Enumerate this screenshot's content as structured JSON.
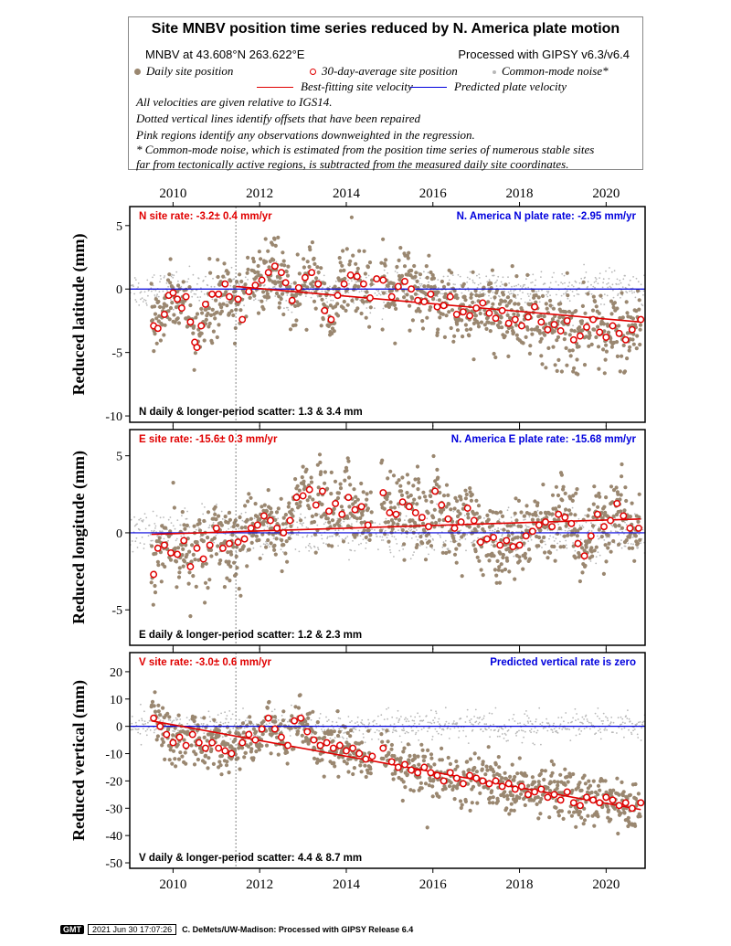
{
  "legend": {
    "title": "Site MNBV position time series reduced by N. America plate motion",
    "site_coords": "MNBV at 43.608°N 263.622°E",
    "processed": "Processed with GIPSY v6.3/v6.4",
    "daily_label": "Daily site position",
    "avg_label": "30-day-average site position",
    "cm_label": "Common-mode noise*",
    "best_fit_label": "Best-fitting site velocity",
    "predicted_label": "Predicted plate velocity",
    "notes": [
      "All velocities are given relative to IGS14.",
      "Dotted vertical lines identify offsets that have been repaired",
      "Pink regions identify any observations downweighted in the regression.",
      "* Common-mode noise, which is estimated from the position time series of numerous stable sites",
      "far from tectonically active regions, is subtracted from the measured daily site coordinates."
    ]
  },
  "colors": {
    "daily": "#9a8770",
    "average_stroke": "#e00000",
    "common_mode": "#b8b8b8",
    "best_fit": "#e00000",
    "predicted": "#0000dd",
    "rate_text": "#e00000",
    "plate_text": "#0000dd"
  },
  "chart_data": [
    {
      "type": "scatter",
      "id": "north",
      "ylabel": "Reduced latitude (mm)",
      "xlim": [
        2009.0,
        2020.9
      ],
      "ylim": [
        -10.5,
        6.5
      ],
      "yticks": [
        5,
        0,
        -5,
        -10
      ],
      "xticks": [
        2010,
        2012,
        2014,
        2016,
        2018,
        2020
      ],
      "rate_text": "N site rate:  -3.2± 0.4 mm/yr",
      "plate_text": "N. America N plate rate: -2.95 mm/yr",
      "scatter_text": "N daily & longer-period scatter:   1.3 &   3.4 mm",
      "offset_line_year": 2011.45,
      "predicted_value": 0,
      "best_fit": {
        "x": [
          2011.45,
          2020.8
        ],
        "y": [
          0.2,
          -2.6
        ]
      },
      "averages": {
        "x": [
          2009.55,
          2009.65,
          2009.8,
          2009.9,
          2010.0,
          2010.1,
          2010.2,
          2010.3,
          2010.4,
          2010.5,
          2010.55,
          2010.65,
          2010.75,
          2010.9,
          2011.05,
          2011.2,
          2011.3,
          2011.5,
          2011.6,
          2011.75,
          2011.9,
          2012.05,
          2012.2,
          2012.35,
          2012.5,
          2012.6,
          2012.75,
          2012.9,
          2013.05,
          2013.2,
          2013.35,
          2013.5,
          2013.65,
          2013.8,
          2013.95,
          2014.1,
          2014.25,
          2014.4,
          2014.55,
          2014.7,
          2014.85,
          2015.05,
          2015.2,
          2015.35,
          2015.5,
          2015.65,
          2015.8,
          2015.95,
          2016.1,
          2016.25,
          2016.4,
          2016.55,
          2016.7,
          2016.85,
          2017.0,
          2017.15,
          2017.3,
          2017.45,
          2017.6,
          2017.75,
          2017.9,
          2018.05,
          2018.2,
          2018.35,
          2018.5,
          2018.65,
          2018.8,
          2018.95,
          2019.1,
          2019.25,
          2019.4,
          2019.55,
          2019.7,
          2019.85,
          2020.0,
          2020.15,
          2020.3,
          2020.45,
          2020.6,
          2020.8
        ],
        "y": [
          -2.9,
          -3.1,
          -2.0,
          -0.5,
          -0.3,
          -0.8,
          -1.5,
          -0.6,
          -2.6,
          -4.2,
          -4.6,
          -2.9,
          -1.2,
          -0.4,
          -0.4,
          0.4,
          -0.6,
          -0.8,
          -2.4,
          -0.2,
          0.3,
          0.7,
          1.3,
          1.8,
          1.3,
          0.5,
          -0.9,
          0.1,
          0.9,
          1.3,
          0.4,
          -1.7,
          -2.4,
          -0.5,
          0.4,
          1.1,
          1.0,
          0.4,
          -0.7,
          0.8,
          0.7,
          -0.6,
          0.2,
          0.6,
          0.0,
          -0.9,
          -1.0,
          -0.4,
          -1.4,
          -1.3,
          -0.6,
          -2.0,
          -1.8,
          -2.1,
          -1.5,
          -1.1,
          -1.9,
          -2.3,
          -1.7,
          -2.7,
          -2.4,
          -2.9,
          -2.2,
          -1.4,
          -2.6,
          -3.2,
          -2.8,
          -3.3,
          -2.5,
          -4.0,
          -3.7,
          -3.0,
          -2.4,
          -3.4,
          -3.8,
          -2.9,
          -3.5,
          -4.0,
          -3.2,
          -2.4
        ]
      }
    },
    {
      "type": "scatter",
      "id": "east",
      "ylabel": "Reduced longitude (mm)",
      "xlim": [
        2009.0,
        2020.9
      ],
      "ylim": [
        -7.3,
        6.7
      ],
      "yticks": [
        5,
        0,
        -5
      ],
      "xticks": [
        2010,
        2012,
        2014,
        2016,
        2018,
        2020
      ],
      "rate_text": "E site rate:  -15.6± 0.3 mm/yr",
      "plate_text": "N. America E plate rate: -15.68 mm/yr",
      "scatter_text": "E daily & longer-period scatter:   1.2 &   2.3 mm",
      "offset_line_year": 2011.45,
      "predicted_value": 0,
      "best_fit": {
        "x": [
          2009.5,
          2020.8
        ],
        "y": [
          -0.1,
          0.9
        ]
      },
      "averages": {
        "x": [
          2009.55,
          2009.65,
          2009.8,
          2009.95,
          2010.1,
          2010.25,
          2010.4,
          2010.55,
          2010.7,
          2010.85,
          2011.0,
          2011.15,
          2011.3,
          2011.5,
          2011.65,
          2011.8,
          2011.95,
          2012.1,
          2012.25,
          2012.4,
          2012.55,
          2012.7,
          2012.85,
          2013.0,
          2013.15,
          2013.3,
          2013.45,
          2013.6,
          2013.75,
          2013.9,
          2014.05,
          2014.2,
          2014.35,
          2014.5,
          2014.85,
          2015.0,
          2015.15,
          2015.3,
          2015.45,
          2015.6,
          2015.75,
          2015.9,
          2016.05,
          2016.2,
          2016.35,
          2016.5,
          2016.65,
          2016.8,
          2016.95,
          2017.1,
          2017.25,
          2017.4,
          2017.55,
          2017.7,
          2017.85,
          2018.0,
          2018.15,
          2018.3,
          2018.45,
          2018.6,
          2018.75,
          2018.9,
          2019.05,
          2019.2,
          2019.35,
          2019.5,
          2019.65,
          2019.8,
          2019.95,
          2020.1,
          2020.25,
          2020.4,
          2020.55,
          2020.75
        ],
        "y": [
          -2.7,
          -1.0,
          -0.8,
          -1.3,
          -1.4,
          -0.5,
          -2.2,
          -1.0,
          -1.7,
          -0.8,
          0.3,
          -1.0,
          -0.7,
          -0.6,
          -0.4,
          0.3,
          0.5,
          1.1,
          0.8,
          0.3,
          0.0,
          0.8,
          2.3,
          2.4,
          2.8,
          1.8,
          2.7,
          1.4,
          1.9,
          1.2,
          2.3,
          1.5,
          1.7,
          0.5,
          2.6,
          1.3,
          1.2,
          2.0,
          1.7,
          1.3,
          1.0,
          0.4,
          2.7,
          1.8,
          0.9,
          0.3,
          0.7,
          1.6,
          0.8,
          -0.6,
          -0.4,
          -0.3,
          -0.8,
          -0.5,
          -0.9,
          -0.8,
          -0.2,
          0.1,
          0.5,
          0.7,
          0.4,
          1.2,
          1.0,
          0.6,
          -0.7,
          -1.5,
          -0.2,
          1.2,
          0.4,
          0.8,
          1.9,
          1.1,
          0.3,
          0.3
        ]
      }
    },
    {
      "type": "scatter",
      "id": "vertical",
      "ylabel": "Reduced vertical (mm)",
      "xlim": [
        2009.0,
        2020.9
      ],
      "ylim": [
        -52,
        27
      ],
      "yticks": [
        20,
        10,
        0,
        -10,
        -20,
        -30,
        -40,
        -50
      ],
      "xticks": [
        2010,
        2012,
        2014,
        2016,
        2018,
        2020
      ],
      "rate_text": "V site rate:  -3.0± 0.6 mm/yr",
      "plate_text": "Predicted vertical rate is zero",
      "scatter_text": "V daily & longer-period scatter:    4.4 &   8.7 mm",
      "offset_line_year": 2011.45,
      "predicted_value": 0,
      "best_fit": {
        "x": [
          2009.5,
          2020.8
        ],
        "y": [
          2.0,
          -30.5
        ]
      },
      "averages": {
        "x": [
          2009.55,
          2009.7,
          2009.85,
          2010.0,
          2010.15,
          2010.3,
          2010.45,
          2010.6,
          2010.75,
          2010.9,
          2011.05,
          2011.2,
          2011.35,
          2011.6,
          2011.75,
          2011.9,
          2012.05,
          2012.2,
          2012.35,
          2012.5,
          2012.65,
          2012.8,
          2012.95,
          2013.1,
          2013.25,
          2013.4,
          2013.55,
          2013.7,
          2013.85,
          2014.0,
          2014.15,
          2014.3,
          2014.45,
          2014.6,
          2014.85,
          2015.05,
          2015.2,
          2015.35,
          2015.5,
          2015.65,
          2015.8,
          2015.95,
          2016.1,
          2016.25,
          2016.4,
          2016.55,
          2016.7,
          2016.85,
          2017.0,
          2017.15,
          2017.3,
          2017.45,
          2017.6,
          2017.75,
          2017.9,
          2018.05,
          2018.2,
          2018.35,
          2018.5,
          2018.65,
          2018.8,
          2018.95,
          2019.1,
          2019.25,
          2019.4,
          2019.55,
          2019.7,
          2019.85,
          2020.0,
          2020.15,
          2020.3,
          2020.45,
          2020.6,
          2020.8
        ],
        "y": [
          3,
          0,
          -3,
          -6,
          -4,
          -7,
          -3,
          -6,
          -8,
          -6,
          -8,
          -9,
          -10,
          -6,
          -3,
          -5,
          -1,
          3,
          -1,
          -4,
          -7,
          2,
          3,
          -2,
          -5,
          -7,
          -6,
          -8,
          -7,
          -9,
          -8,
          -10,
          -12,
          -11,
          -8,
          -13,
          -15,
          -14,
          -16,
          -17,
          -15,
          -17,
          -18,
          -20,
          -17,
          -19,
          -21,
          -18,
          -19,
          -20,
          -21,
          -20,
          -22,
          -21,
          -23,
          -22,
          -25,
          -24,
          -23,
          -26,
          -25,
          -27,
          -24,
          -28,
          -29,
          -26,
          -27,
          -28,
          -26,
          -27,
          -29,
          -28,
          -30,
          -28
        ]
      }
    }
  ],
  "footer": {
    "logo_text": "GMT",
    "timestamp": "2021 Jun 30 17:07:26",
    "credit": "C. DeMets/UW-Madison: Processed with GIPSY Release 6.4"
  }
}
